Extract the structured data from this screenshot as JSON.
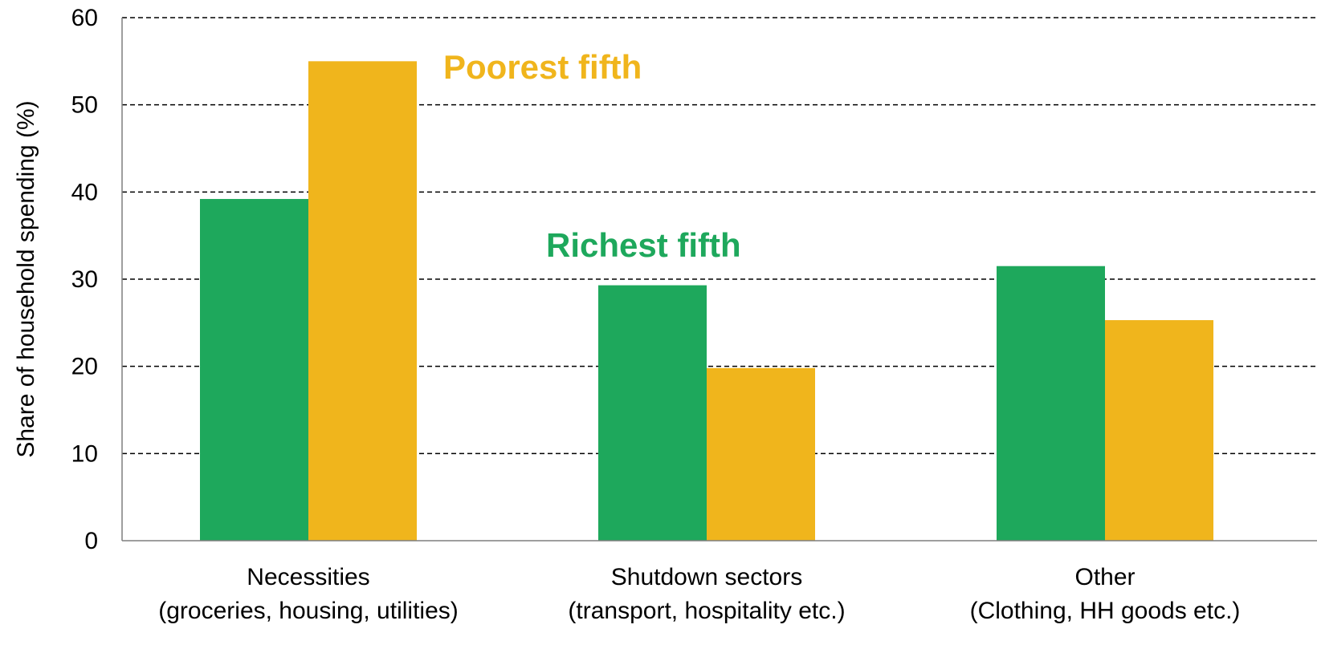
{
  "chart_data": {
    "type": "bar",
    "ylabel": "Share of household spending (%)",
    "xlabel": "",
    "ylim": [
      0,
      60
    ],
    "yticks": [
      "0",
      "10",
      "20",
      "30",
      "40",
      "50",
      "60"
    ],
    "grid": true,
    "categories": [
      {
        "line1": "Necessities",
        "line2": "(groceries, housing, utilities)"
      },
      {
        "line1": "Shutdown sectors",
        "line2": "(transport, hospitality etc.)"
      },
      {
        "line1": "Other",
        "line2": "(Clothing, HH goods etc.)"
      }
    ],
    "series": [
      {
        "name": "Richest fifth",
        "color": "#1ea85c",
        "values": [
          39.2,
          29.3,
          31.5
        ]
      },
      {
        "name": "Poorest fifth",
        "color": "#f0b51c",
        "values": [
          55.0,
          19.8,
          25.3
        ]
      }
    ],
    "legend": "inline labels near bars"
  }
}
